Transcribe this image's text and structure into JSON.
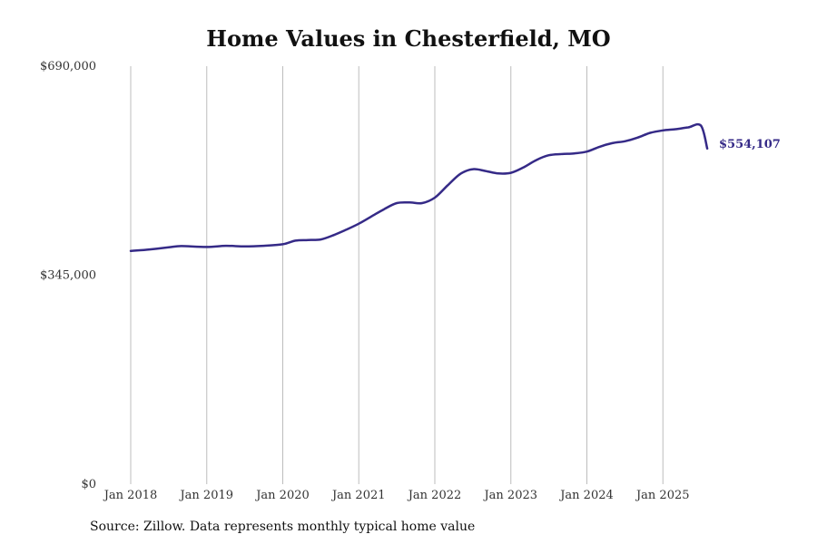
{
  "chart_data": {
    "type": "line",
    "title": "Home Values in Chesterfield, MO",
    "source": "Source: Zillow. Data represents monthly typical home value",
    "xlabel": "",
    "ylabel": "",
    "ylim": [
      0,
      690000
    ],
    "y_ticks": [
      {
        "value": 0,
        "label": "$0"
      },
      {
        "value": 345000,
        "label": "$345,000"
      },
      {
        "value": 690000,
        "label": "$690,000"
      }
    ],
    "x_ticks": [
      {
        "value": "2018-01",
        "label": "Jan 2018"
      },
      {
        "value": "2019-01",
        "label": "Jan 2019"
      },
      {
        "value": "2020-01",
        "label": "Jan 2020"
      },
      {
        "value": "2021-01",
        "label": "Jan 2021"
      },
      {
        "value": "2022-01",
        "label": "Jan 2022"
      },
      {
        "value": "2023-01",
        "label": "Jan 2023"
      },
      {
        "value": "2024-01",
        "label": "Jan 2024"
      },
      {
        "value": "2025-01",
        "label": "Jan 2025"
      }
    ],
    "grid": "vertical",
    "line_color": "#352a87",
    "end_label": "$554,107",
    "series": [
      {
        "x": [
          "2018-01",
          "2018-04",
          "2018-07",
          "2018-09",
          "2019-01",
          "2019-04",
          "2019-07",
          "2019-10",
          "2020-01",
          "2020-03",
          "2020-05",
          "2020-07",
          "2020-09",
          "2020-11",
          "2021-01",
          "2021-03",
          "2021-05",
          "2021-07",
          "2021-09",
          "2021-11",
          "2022-01",
          "2022-03",
          "2022-05",
          "2022-07",
          "2022-09",
          "2022-11",
          "2023-01",
          "2023-03",
          "2023-05",
          "2023-07",
          "2023-09",
          "2023-11",
          "2024-01",
          "2024-03",
          "2024-05",
          "2024-07",
          "2024-09",
          "2024-11",
          "2025-01",
          "2025-03",
          "2025-05",
          "2025-07",
          "2025-08"
        ],
        "values": [
          385000,
          387500,
          391000,
          393000,
          391500,
          393500,
          392500,
          393500,
          396000,
          402000,
          403000,
          404000,
          411000,
          420000,
          430000,
          442000,
          454000,
          464000,
          465000,
          464000,
          473000,
          493000,
          512000,
          520000,
          517000,
          513000,
          514000,
          523000,
          535000,
          543000,
          545000,
          546000,
          549000,
          557000,
          563000,
          566000,
          572000,
          580000,
          584000,
          586000,
          589000,
          592000,
          554107
        ]
      }
    ]
  }
}
